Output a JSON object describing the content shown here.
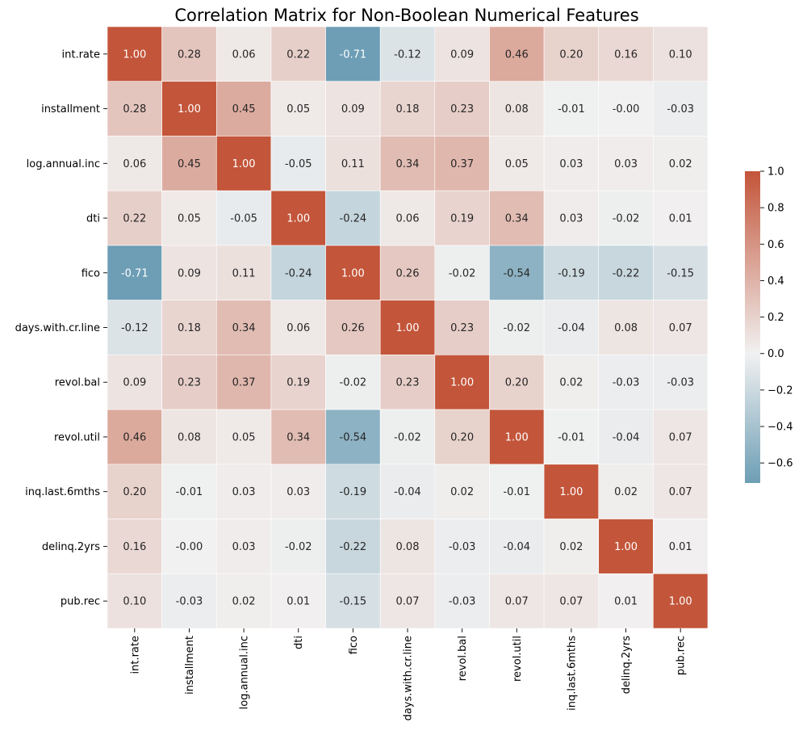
{
  "chart_data": {
    "type": "heatmap",
    "title": "Correlation Matrix for Non-Boolean Numerical Features",
    "xlabel": "",
    "ylabel": "",
    "labels": [
      "int.rate",
      "installment",
      "log.annual.inc",
      "dti",
      "fico",
      "days.with.cr.line",
      "revol.bal",
      "revol.util",
      "inq.last.6mths",
      "delinq.2yrs",
      "pub.rec"
    ],
    "values": [
      [
        1.0,
        0.28,
        0.06,
        0.22,
        -0.71,
        -0.12,
        0.09,
        0.46,
        0.2,
        0.16,
        0.1
      ],
      [
        0.28,
        1.0,
        0.45,
        0.05,
        0.09,
        0.18,
        0.23,
        0.08,
        -0.01,
        -0.0,
        -0.03
      ],
      [
        0.06,
        0.45,
        1.0,
        -0.05,
        0.11,
        0.34,
        0.37,
        0.05,
        0.03,
        0.03,
        0.02
      ],
      [
        0.22,
        0.05,
        -0.05,
        1.0,
        -0.24,
        0.06,
        0.19,
        0.34,
        0.03,
        -0.02,
        0.01
      ],
      [
        -0.71,
        0.09,
        0.11,
        -0.24,
        1.0,
        0.26,
        -0.02,
        -0.54,
        -0.19,
        -0.22,
        -0.15
      ],
      [
        -0.12,
        0.18,
        0.34,
        0.06,
        0.26,
        1.0,
        0.23,
        -0.02,
        -0.04,
        0.08,
        0.07
      ],
      [
        0.09,
        0.23,
        0.37,
        0.19,
        -0.02,
        0.23,
        1.0,
        0.2,
        0.02,
        -0.03,
        -0.03
      ],
      [
        0.46,
        0.08,
        0.05,
        0.34,
        -0.54,
        -0.02,
        0.2,
        1.0,
        -0.01,
        -0.04,
        0.07
      ],
      [
        0.2,
        -0.01,
        0.03,
        0.03,
        -0.19,
        -0.04,
        0.02,
        -0.01,
        1.0,
        0.02,
        0.07
      ],
      [
        0.16,
        -0.0,
        0.03,
        -0.02,
        -0.22,
        0.08,
        -0.03,
        -0.04,
        0.02,
        1.0,
        0.01
      ],
      [
        0.1,
        -0.03,
        0.02,
        0.01,
        -0.15,
        0.07,
        -0.03,
        0.07,
        0.07,
        0.01,
        1.0
      ]
    ],
    "value_labels": [
      [
        "1.00",
        "0.28",
        "0.06",
        "0.22",
        "-0.71",
        "-0.12",
        "0.09",
        "0.46",
        "0.20",
        "0.16",
        "0.10"
      ],
      [
        "0.28",
        "1.00",
        "0.45",
        "0.05",
        "0.09",
        "0.18",
        "0.23",
        "0.08",
        "-0.01",
        "-0.00",
        "-0.03"
      ],
      [
        "0.06",
        "0.45",
        "1.00",
        "-0.05",
        "0.11",
        "0.34",
        "0.37",
        "0.05",
        "0.03",
        "0.03",
        "0.02"
      ],
      [
        "0.22",
        "0.05",
        "-0.05",
        "1.00",
        "-0.24",
        "0.06",
        "0.19",
        "0.34",
        "0.03",
        "-0.02",
        "0.01"
      ],
      [
        "-0.71",
        "0.09",
        "0.11",
        "-0.24",
        "1.00",
        "0.26",
        "-0.02",
        "-0.54",
        "-0.19",
        "-0.22",
        "-0.15"
      ],
      [
        "-0.12",
        "0.18",
        "0.34",
        "0.06",
        "0.26",
        "1.00",
        "0.23",
        "-0.02",
        "-0.04",
        "0.08",
        "0.07"
      ],
      [
        "0.09",
        "0.23",
        "0.37",
        "0.19",
        "-0.02",
        "0.23",
        "1.00",
        "0.20",
        "0.02",
        "-0.03",
        "-0.03"
      ],
      [
        "0.46",
        "0.08",
        "0.05",
        "0.34",
        "-0.54",
        "-0.02",
        "0.20",
        "1.00",
        "-0.01",
        "-0.04",
        "0.07"
      ],
      [
        "0.20",
        "-0.01",
        "0.03",
        "0.03",
        "-0.19",
        "-0.04",
        "0.02",
        "-0.01",
        "1.00",
        "0.02",
        "0.07"
      ],
      [
        "0.16",
        "-0.00",
        "0.03",
        "-0.02",
        "-0.22",
        "0.08",
        "-0.03",
        "-0.04",
        "0.02",
        "1.00",
        "0.01"
      ],
      [
        "0.10",
        "-0.03",
        "0.02",
        "0.01",
        "-0.15",
        "0.07",
        "-0.03",
        "0.07",
        "0.07",
        "0.01",
        "1.00"
      ]
    ],
    "colorbar": {
      "vmin": -0.71,
      "vmax": 1.0,
      "ticks": [
        1.0,
        0.8,
        0.6,
        0.4,
        0.2,
        0.0,
        -0.2,
        -0.4,
        -0.6
      ],
      "tick_labels": [
        "1.0",
        "0.8",
        "0.6",
        "0.4",
        "0.2",
        "0.0",
        "−0.2",
        "−0.4",
        "−0.6"
      ]
    },
    "colors": {
      "negative": "#6d9eb5",
      "neutral": "#f1f1f1",
      "positive": "#c3553a",
      "cell_border": "#ffffff",
      "text_dark": "#262626",
      "text_light": "#ffffff"
    },
    "grid": false,
    "legend": "colorbar-right"
  }
}
